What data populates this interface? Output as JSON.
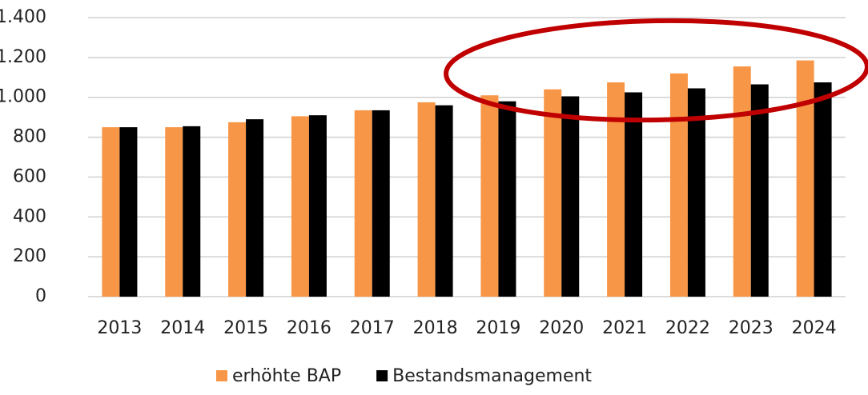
{
  "chart_data": {
    "type": "bar",
    "categories": [
      "2013",
      "2014",
      "2015",
      "2016",
      "2017",
      "2018",
      "2019",
      "2020",
      "2021",
      "2022",
      "2023",
      "2024"
    ],
    "series": [
      {
        "name": "erhöhte BAP",
        "color": "#f79646",
        "values": [
          850,
          850,
          875,
          905,
          935,
          975,
          1010,
          1040,
          1075,
          1120,
          1155,
          1185
        ]
      },
      {
        "name": "Bestandsmanagement",
        "color": "#000000",
        "values": [
          850,
          855,
          890,
          910,
          935,
          960,
          980,
          1005,
          1025,
          1045,
          1065,
          1075
        ]
      }
    ],
    "ylim": [
      0,
      1400
    ],
    "yticks": [
      0,
      200,
      400,
      600,
      800,
      {
        "value": 1000,
        "label": "1.000"
      },
      {
        "value": 1200,
        "label": "1.200"
      },
      {
        "value": 1400,
        "label": "1.400"
      }
    ],
    "grid": true,
    "legend": "bottom"
  }
}
